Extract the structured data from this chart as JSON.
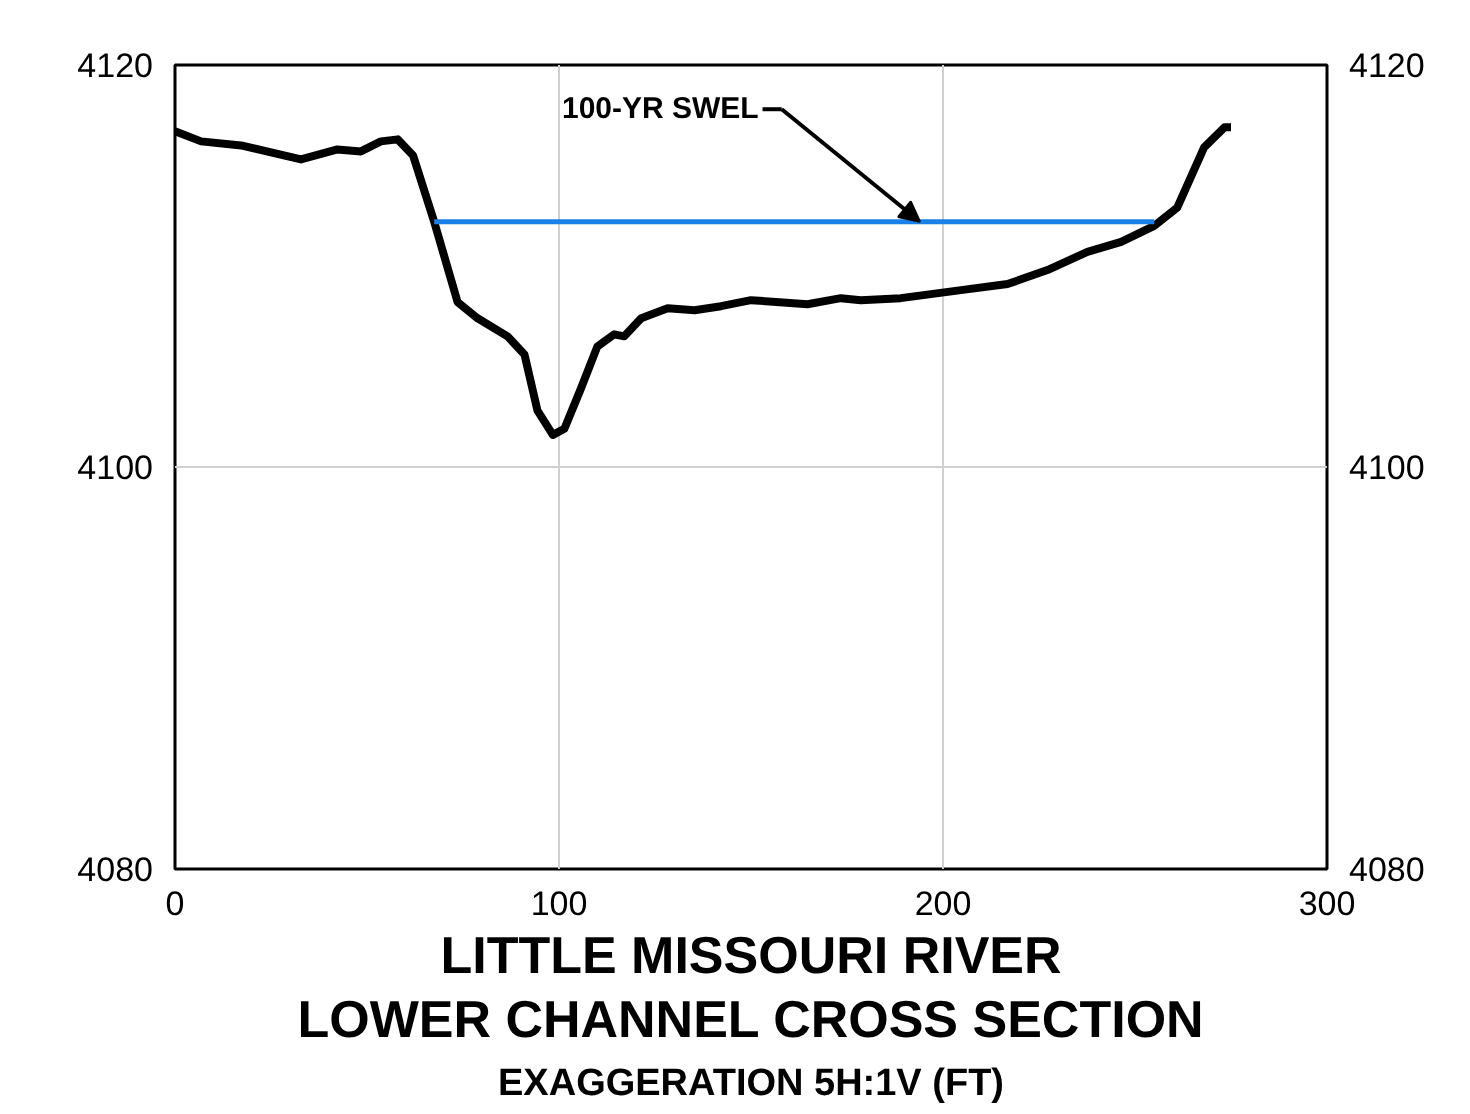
{
  "chart_data": {
    "type": "line",
    "title": "LITTLE MISSOURI RIVER\nLOWER CHANNEL CROSS SECTION",
    "subtitle": "EXAGGERATION 5H:1V (FT)",
    "series": [
      {
        "color": "#000000",
        "x": [
          0,
          6.8,
          17.2,
          32.8,
          42.3,
          48.4,
          53.6,
          58,
          62,
          67.5,
          73.6,
          78.8,
          86.6,
          91,
          94.4,
          98.4,
          101.4,
          105.7,
          110,
          114.4,
          117,
          121.4,
          128.3,
          135.3,
          142.2,
          150,
          164.7,
          173.4,
          178.6,
          189,
          204.7,
          216.8,
          227.2,
          237.6,
          246.4,
          255,
          261,
          268,
          273.3,
          275
        ],
        "values": [
          4116.7,
          4116.2,
          4116.0,
          4115.3,
          4115.8,
          4115.7,
          4116.2,
          4116.3,
          4115.5,
          4112.2,
          4108.2,
          4107.4,
          4106.5,
          4105.6,
          4102.8,
          4101.6,
          4101.9,
          4103.9,
          4106.0,
          4106.6,
          4106.5,
          4107.4,
          4107.9,
          4107.8,
          4108.0,
          4108.3,
          4108.1,
          4108.4,
          4108.3,
          4108.4,
          4108.8,
          4109.1,
          4109.8,
          4110.7,
          4111.2,
          4112.0,
          4112.9,
          4115.9,
          4116.9,
          4116.9
        ]
      },
      {
        "color": "#1a7fe6",
        "x": [
          67.5,
          255
        ],
        "values": [
          4112.2,
          4112.2
        ]
      }
    ],
    "annotations": [
      {
        "text": "100-YR SWEL",
        "x": 194,
        "y": 4112.2
      }
    ],
    "xlim": [
      0,
      300
    ],
    "xticks": [
      0,
      100,
      200,
      300
    ],
    "ylim": [
      4080,
      4120
    ],
    "yticks": [
      4080,
      4100,
      4120
    ],
    "y2lim": [
      4080,
      4120
    ],
    "y2ticks": [
      4080,
      4100,
      4120
    ],
    "grid": true,
    "marker": "none",
    "line_style": "solid"
  }
}
